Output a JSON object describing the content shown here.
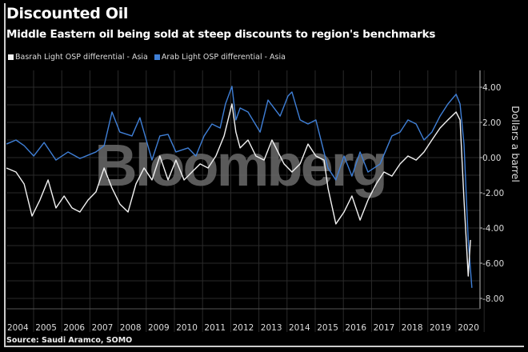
{
  "title": "Discounted Oil",
  "subtitle": "Middle Eastern oil being sold at steep discounts to region's benchmarks",
  "source": "Source: Saudi Aramco, SOMO",
  "watermark": "Bloomberg",
  "chart_data": {
    "type": "line",
    "title": "Discounted Oil",
    "subtitle": "Middle Eastern oil being sold at steep discounts to region's benchmarks",
    "ylabel": "Dollars a barrel",
    "ylim": [
      -8,
      4.5
    ],
    "xlim": [
      2004,
      2021
    ],
    "y_ticks": [
      "4.00",
      "2.00",
      "0.00",
      "-2.00",
      "-4.00",
      "-6.00",
      "-8.00"
    ],
    "x_ticks": [
      "2004",
      "2005",
      "2006",
      "2007",
      "2008",
      "2009",
      "2010",
      "2011",
      "2012",
      "2013",
      "2014",
      "2015",
      "2016",
      "2017",
      "2018",
      "2019",
      "2020"
    ],
    "grid": true,
    "legend_position": "top-left",
    "series": [
      {
        "name": "Basrah Light OSP differential - Asia",
        "color": "#f2f2f2",
        "points": [
          [
            2004.0,
            -0.59
          ],
          [
            2004.34,
            -0.82
          ],
          [
            2004.63,
            -1.5
          ],
          [
            2004.91,
            -3.32
          ],
          [
            2005.19,
            -2.41
          ],
          [
            2005.48,
            -1.27
          ],
          [
            2005.76,
            -2.86
          ],
          [
            2006.05,
            -2.18
          ],
          [
            2006.33,
            -2.86
          ],
          [
            2006.61,
            -3.09
          ],
          [
            2006.9,
            -2.41
          ],
          [
            2007.18,
            -1.95
          ],
          [
            2007.47,
            -0.59
          ],
          [
            2007.75,
            -1.73
          ],
          [
            2008.03,
            -2.64
          ],
          [
            2008.32,
            -3.09
          ],
          [
            2008.6,
            -1.5
          ],
          [
            2008.89,
            -0.59
          ],
          [
            2009.17,
            -1.27
          ],
          [
            2009.45,
            0.09
          ],
          [
            2009.74,
            -1.27
          ],
          [
            2010.02,
            -0.14
          ],
          [
            2010.31,
            -1.27
          ],
          [
            2010.59,
            -0.82
          ],
          [
            2010.88,
            -0.36
          ],
          [
            2011.16,
            -0.59
          ],
          [
            2011.44,
            0.09
          ],
          [
            2011.73,
            1.23
          ],
          [
            2012.01,
            3.05
          ],
          [
            2012.15,
            1.45
          ],
          [
            2012.3,
            0.55
          ],
          [
            2012.58,
            1.0
          ],
          [
            2012.86,
            0.09
          ],
          [
            2013.15,
            -0.14
          ],
          [
            2013.43,
            1.0
          ],
          [
            2013.86,
            -0.36
          ],
          [
            2014.14,
            -0.82
          ],
          [
            2014.43,
            -0.36
          ],
          [
            2014.71,
            0.77
          ],
          [
            2014.99,
            0.09
          ],
          [
            2015.28,
            -0.14
          ],
          [
            2015.42,
            -1.73
          ],
          [
            2015.7,
            -3.77
          ],
          [
            2015.99,
            -3.09
          ],
          [
            2016.27,
            -2.18
          ],
          [
            2016.56,
            -3.55
          ],
          [
            2016.84,
            -2.41
          ],
          [
            2017.13,
            -1.5
          ],
          [
            2017.41,
            -0.82
          ],
          [
            2017.69,
            -1.05
          ],
          [
            2017.98,
            -0.36
          ],
          [
            2018.26,
            0.09
          ],
          [
            2018.55,
            -0.14
          ],
          [
            2018.83,
            0.32
          ],
          [
            2019.11,
            1.0
          ],
          [
            2019.4,
            1.68
          ],
          [
            2019.68,
            2.14
          ],
          [
            2019.82,
            2.36
          ],
          [
            2019.97,
            2.59
          ],
          [
            2020.11,
            2.14
          ],
          [
            2020.25,
            -2.41
          ],
          [
            2020.4,
            -6.73
          ],
          [
            2020.48,
            -4.68
          ]
        ]
      },
      {
        "name": "Arab Light OSP differential - Asia",
        "color": "#3f7fd6",
        "points": [
          [
            2004.0,
            0.77
          ],
          [
            2004.34,
            1.0
          ],
          [
            2004.63,
            0.68
          ],
          [
            2004.97,
            0.09
          ],
          [
            2005.34,
            0.86
          ],
          [
            2005.76,
            -0.14
          ],
          [
            2006.19,
            0.32
          ],
          [
            2006.61,
            -0.05
          ],
          [
            2007.18,
            0.32
          ],
          [
            2007.47,
            0.68
          ],
          [
            2007.75,
            2.59
          ],
          [
            2008.03,
            1.45
          ],
          [
            2008.46,
            1.23
          ],
          [
            2008.74,
            2.27
          ],
          [
            2009.17,
            -0.14
          ],
          [
            2009.45,
            1.23
          ],
          [
            2009.74,
            1.32
          ],
          [
            2010.02,
            0.32
          ],
          [
            2010.45,
            0.55
          ],
          [
            2010.73,
            0.09
          ],
          [
            2011.02,
            1.23
          ],
          [
            2011.3,
            1.91
          ],
          [
            2011.59,
            1.68
          ],
          [
            2011.78,
            3.05
          ],
          [
            2012.01,
            4.05
          ],
          [
            2012.15,
            2.14
          ],
          [
            2012.3,
            2.82
          ],
          [
            2012.58,
            2.59
          ],
          [
            2013.01,
            1.45
          ],
          [
            2013.29,
            3.27
          ],
          [
            2013.72,
            2.36
          ],
          [
            2014.0,
            3.5
          ],
          [
            2014.14,
            3.73
          ],
          [
            2014.43,
            2.14
          ],
          [
            2014.71,
            1.91
          ],
          [
            2014.99,
            2.14
          ],
          [
            2015.42,
            -0.59
          ],
          [
            2015.7,
            -1.27
          ],
          [
            2015.99,
            0.09
          ],
          [
            2016.27,
            -1.05
          ],
          [
            2016.56,
            0.32
          ],
          [
            2016.84,
            -0.82
          ],
          [
            2017.27,
            -0.36
          ],
          [
            2017.69,
            1.23
          ],
          [
            2017.98,
            1.45
          ],
          [
            2018.26,
            2.14
          ],
          [
            2018.55,
            1.91
          ],
          [
            2018.83,
            1.0
          ],
          [
            2019.11,
            1.45
          ],
          [
            2019.4,
            2.36
          ],
          [
            2019.68,
            3.05
          ],
          [
            2019.97,
            3.6
          ],
          [
            2020.11,
            3.05
          ],
          [
            2020.25,
            0.77
          ],
          [
            2020.4,
            -4.68
          ],
          [
            2020.53,
            -7.4
          ]
        ]
      }
    ]
  }
}
